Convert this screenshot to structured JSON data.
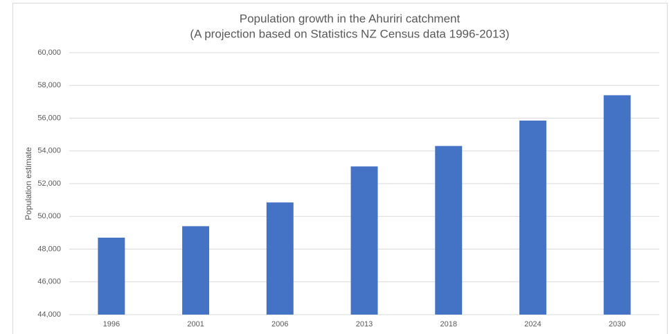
{
  "chart_data": {
    "type": "bar",
    "title": "Population growth in the Ahuriri catchment",
    "subtitle": "(A projection based on Statistics NZ Census data 1996-2013)",
    "y_label": "Population estimate",
    "categories": [
      "1996",
      "2001",
      "2006",
      "2013",
      "2018",
      "2024",
      "2030"
    ],
    "values": [
      48700,
      49400,
      50850,
      53050,
      54300,
      55850,
      57400
    ],
    "color": "#4472c4",
    "ylim": [
      44000,
      60000
    ],
    "yticks": [
      {
        "value": 44000,
        "label": "44,000"
      },
      {
        "value": 46000,
        "label": "46,000"
      },
      {
        "value": 48000,
        "label": "48,000"
      },
      {
        "value": 50000,
        "label": "50,000"
      },
      {
        "value": 52000,
        "label": "52,000"
      },
      {
        "value": 54000,
        "label": "54,000"
      },
      {
        "value": 56000,
        "label": "56,000"
      },
      {
        "value": 58000,
        "label": "58,000"
      },
      {
        "value": 60000,
        "label": "60,000"
      }
    ],
    "grid": true
  }
}
